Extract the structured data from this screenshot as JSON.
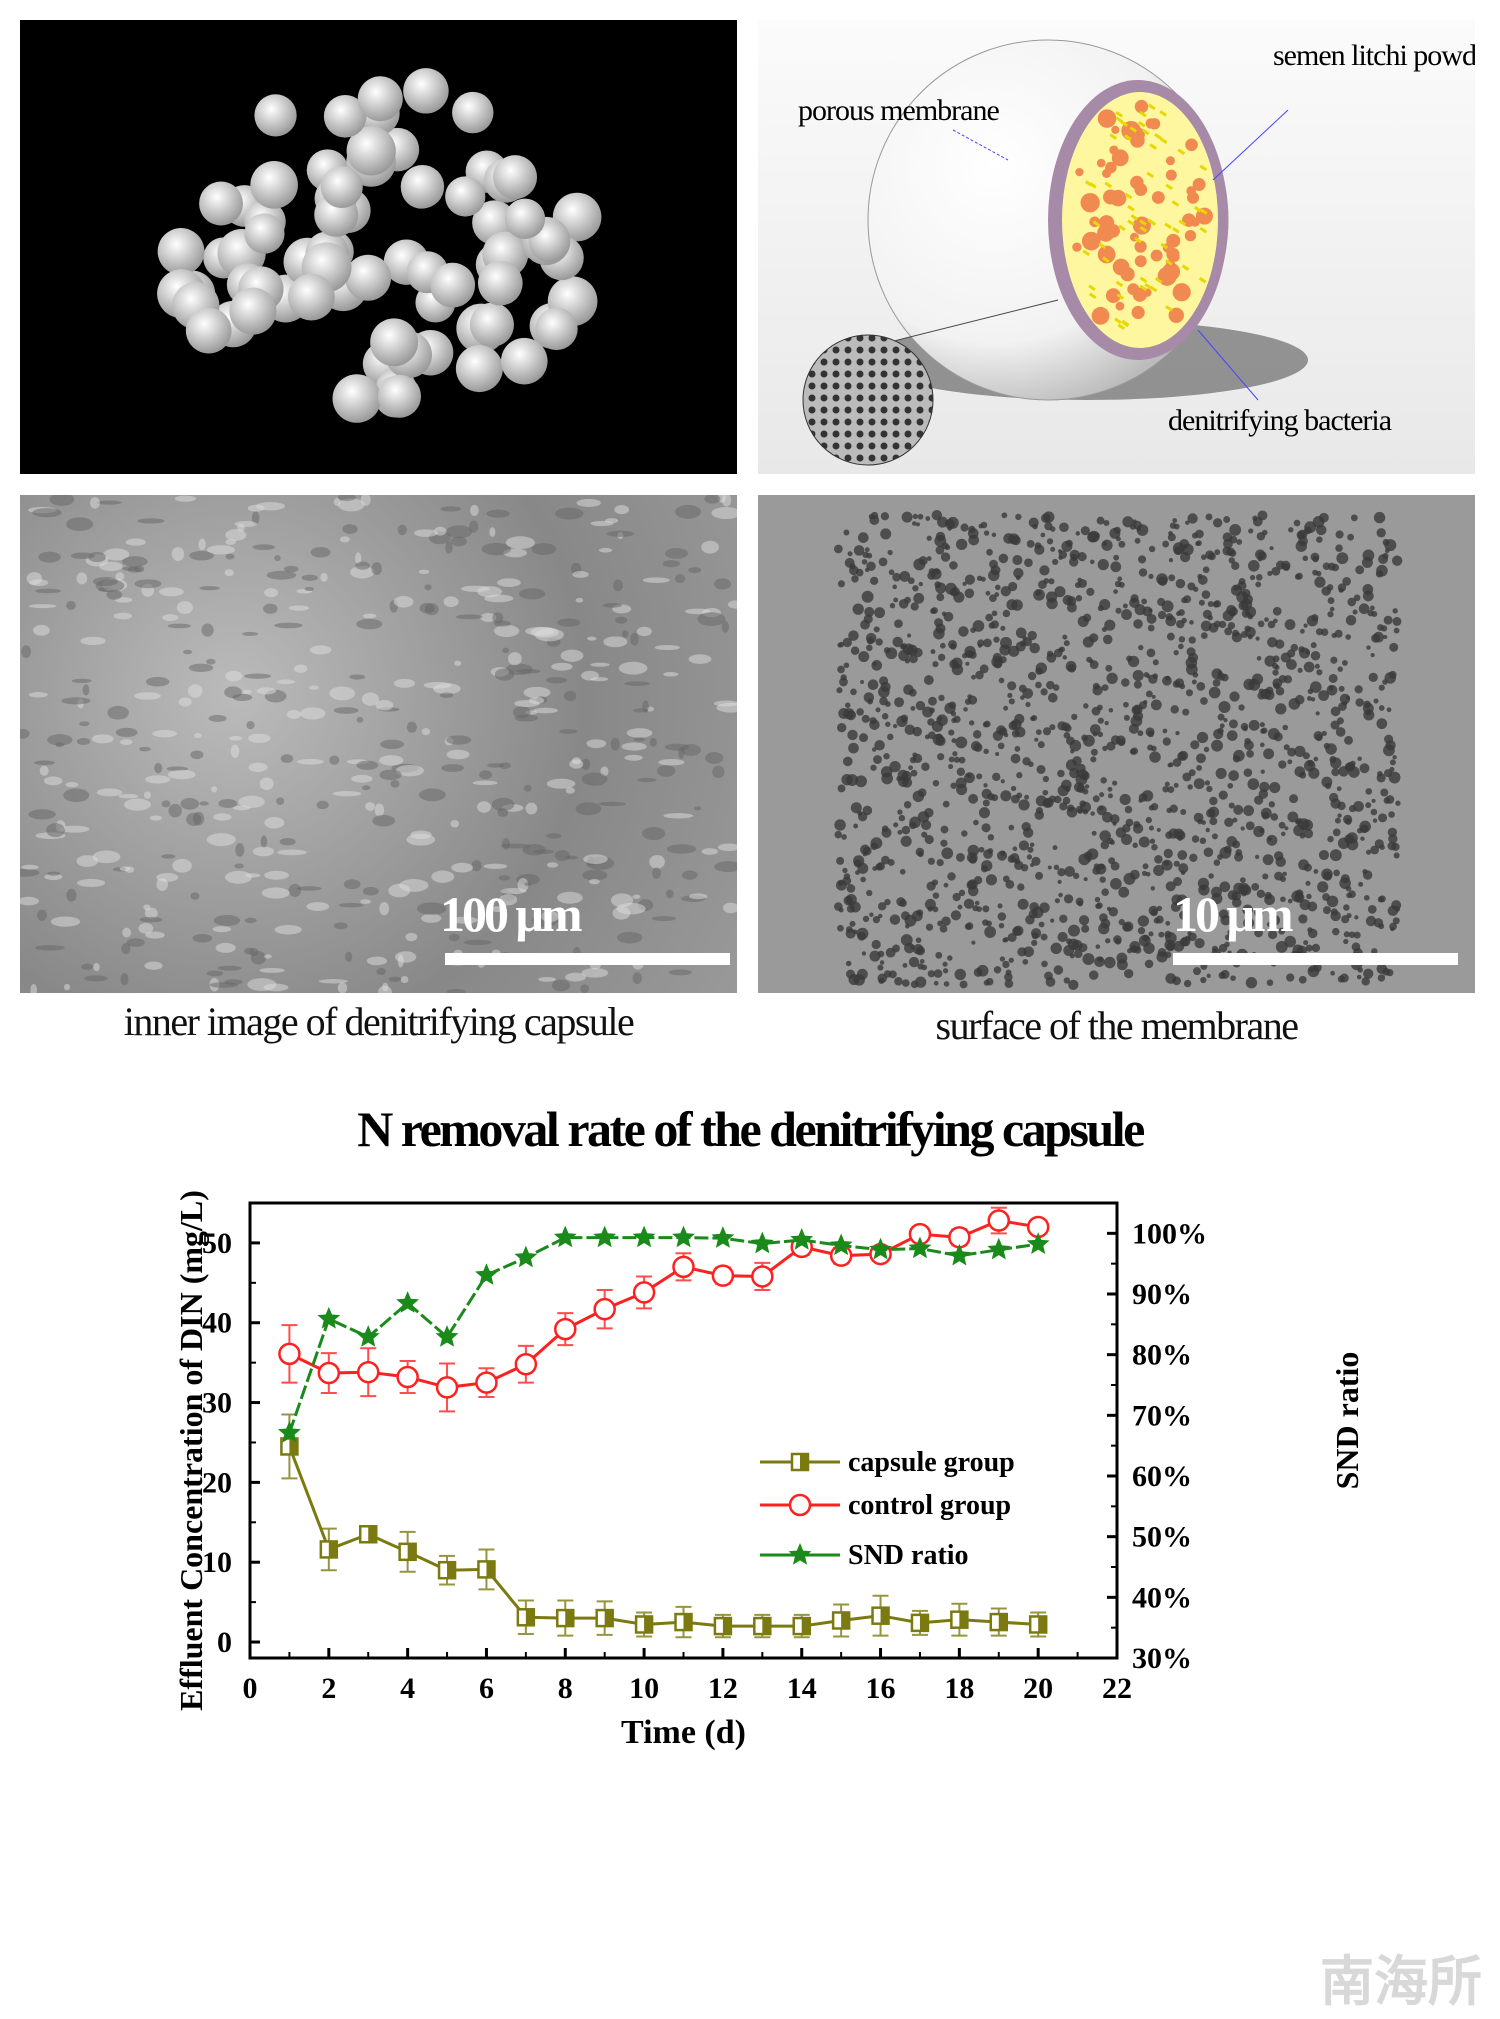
{
  "figure": {
    "diagram_labels": {
      "porous_membrane": "porous membrane",
      "semen_litchi_powder": "semen litchi powder",
      "denitrifying_bacteria": "denitrifying bacteria"
    },
    "sem_left_scale": "100 μm",
    "sem_right_scale": "10 μm",
    "caption_left": "inner image of denitrifying capsule",
    "caption_right": "surface of the membrane",
    "watermark": "南海所"
  },
  "chart_data": {
    "type": "line",
    "title": "N removal rate of the denitrifying capsule",
    "xlabel": "Time (d)",
    "ylabel": "Effluent Concentration of DIN (mg/L)",
    "y2label": "SND ratio",
    "xlim": [
      0,
      22
    ],
    "ylim": [
      -2,
      55
    ],
    "y2lim": [
      30,
      105
    ],
    "xticks": [
      0,
      2,
      4,
      6,
      8,
      10,
      12,
      14,
      16,
      18,
      20,
      22
    ],
    "yticks": [
      0,
      10,
      20,
      30,
      40,
      50
    ],
    "y2ticks": [
      "30%",
      "40%",
      "50%",
      "60%",
      "70%",
      "80%",
      "90%",
      "100%"
    ],
    "legend_position": "center-right",
    "x": [
      1,
      2,
      3,
      4,
      5,
      6,
      7,
      8,
      9,
      10,
      11,
      12,
      13,
      14,
      15,
      16,
      17,
      18,
      19,
      20
    ],
    "series": [
      {
        "name": "capsule group",
        "axis": "left",
        "color": "#7a7a10",
        "marker": "square",
        "values": [
          24.5,
          11.6,
          13.5,
          11.3,
          9.0,
          9.1,
          3.1,
          3.0,
          3.0,
          2.2,
          2.5,
          2.0,
          2.0,
          2.0,
          2.7,
          3.3,
          2.4,
          2.8,
          2.5,
          2.2
        ],
        "errors": [
          4.0,
          2.6,
          0.4,
          2.5,
          1.8,
          2.5,
          2.1,
          2.2,
          2.1,
          1.5,
          1.9,
          1.4,
          1.4,
          1.4,
          2.0,
          2.5,
          1.5,
          2.0,
          1.7,
          1.5
        ]
      },
      {
        "name": "control group",
        "axis": "left",
        "color": "#ff2020",
        "marker": "circle",
        "values": [
          36.1,
          33.7,
          33.8,
          33.2,
          31.9,
          32.5,
          34.8,
          39.2,
          41.7,
          43.8,
          47.0,
          45.9,
          45.8,
          49.5,
          48.4,
          48.6,
          51.1,
          50.7,
          52.8,
          52.0
        ],
        "errors": [
          3.6,
          2.5,
          3.0,
          2.0,
          3.0,
          1.8,
          2.3,
          2.0,
          2.4,
          2.0,
          1.7,
          1.0,
          1.7,
          1.0,
          1.0,
          0.5,
          0.3,
          1.0,
          1.6,
          0.8
        ]
      },
      {
        "name": "SND ratio",
        "axis": "right",
        "color": "#1a8a1a",
        "marker": "star",
        "values": [
          67.1,
          85.9,
          82.9,
          88.5,
          82.9,
          93.1,
          96.0,
          99.3,
          99.3,
          99.3,
          99.3,
          99.2,
          98.3,
          98.9,
          98.0,
          97.3,
          97.5,
          96.3,
          97.3,
          98.2
        ]
      }
    ]
  }
}
